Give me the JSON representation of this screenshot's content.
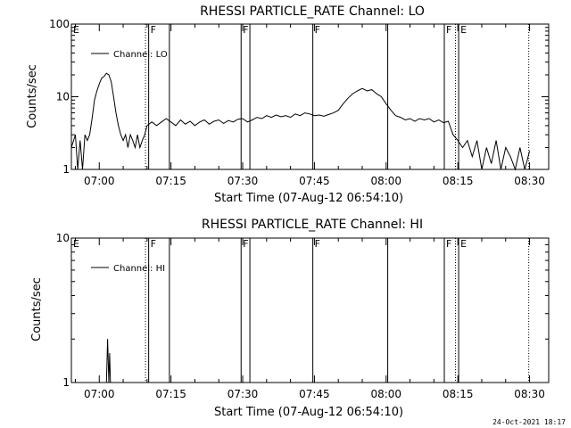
{
  "chart_data": [
    {
      "type": "line",
      "title": "RHESSI PARTICLE_RATE Channel: LO",
      "xlabel": "Start Time (07-Aug-12 06:54:10)",
      "ylabel": "Counts/sec",
      "yscale": "log",
      "ylim": [
        1,
        100
      ],
      "xlim": [
        "06:54:10",
        "08:34:00"
      ],
      "xticks": [
        "07:00",
        "07:15",
        "07:30",
        "07:45",
        "08:00",
        "08:15",
        "08:30"
      ],
      "yticks": [
        "1",
        "10",
        "100"
      ],
      "legend": "top-left",
      "series": [
        {
          "name": "Channel: LO",
          "x": [
            "06:54:10",
            "06:55:00",
            "06:55:30",
            "06:56:00",
            "06:56:30",
            "06:57:00",
            "06:57:30",
            "06:58:00",
            "06:58:30",
            "06:59:00",
            "06:59:30",
            "07:00:00",
            "07:00:30",
            "07:01:00",
            "07:01:30",
            "07:02:00",
            "07:02:30",
            "07:03:00",
            "07:03:30",
            "07:04:00",
            "07:04:30",
            "07:05:00",
            "07:05:30",
            "07:06:00",
            "07:06:30",
            "07:07:00",
            "07:07:30",
            "07:08:00",
            "07:08:30",
            "07:09:00",
            "07:09:30",
            "07:10:00",
            "07:11:00",
            "07:12:00",
            "07:13:00",
            "07:14:00",
            "07:15:00",
            "07:16:00",
            "07:17:00",
            "07:18:00",
            "07:19:00",
            "07:20:00",
            "07:21:00",
            "07:22:00",
            "07:23:00",
            "07:24:00",
            "07:25:00",
            "07:26:00",
            "07:27:00",
            "07:28:00",
            "07:29:00",
            "07:30:00",
            "07:31:00",
            "07:32:00",
            "07:33:00",
            "07:34:00",
            "07:35:00",
            "07:36:00",
            "07:37:00",
            "07:38:00",
            "07:39:00",
            "07:40:00",
            "07:41:00",
            "07:42:00",
            "07:43:00",
            "07:44:00",
            "07:45:00",
            "07:46:00",
            "07:47:00",
            "07:48:00",
            "07:49:00",
            "07:50:00",
            "07:51:00",
            "07:52:00",
            "07:53:00",
            "07:54:00",
            "07:55:00",
            "07:56:00",
            "07:57:00",
            "07:58:00",
            "07:59:00",
            "08:00:00",
            "08:01:00",
            "08:02:00",
            "08:03:00",
            "08:04:00",
            "08:05:00",
            "08:06:00",
            "08:07:00",
            "08:08:00",
            "08:09:00",
            "08:10:00",
            "08:11:00",
            "08:12:00",
            "08:13:00",
            "08:14:00",
            "08:15:00",
            "08:16:00",
            "08:17:00",
            "08:18:00",
            "08:19:00",
            "08:20:00",
            "08:21:00",
            "08:22:00",
            "08:23:00",
            "08:24:00",
            "08:25:00",
            "08:26:00",
            "08:27:00",
            "08:28:00",
            "08:29:00",
            "08:30:00"
          ],
          "values": [
            2,
            3,
            1,
            2.5,
            1,
            3,
            2.5,
            3,
            5,
            9,
            12,
            15,
            18,
            19,
            21,
            20,
            16,
            10,
            6,
            4,
            3,
            2.5,
            3,
            2,
            3,
            2.5,
            2,
            3,
            2,
            2.5,
            3,
            4,
            4.5,
            4,
            4.5,
            5,
            4.5,
            4,
            4.8,
            4.2,
            4.6,
            4,
            4.5,
            4.8,
            4.2,
            4.6,
            4.8,
            4.3,
            4.7,
            4.5,
            4.9,
            5,
            4.5,
            4.8,
            5.2,
            5,
            5.5,
            5.2,
            5.6,
            5.3,
            5.5,
            5.2,
            5.8,
            5.5,
            6,
            5.8,
            5.5,
            5.6,
            5.4,
            5.7,
            6,
            6.5,
            8,
            9.5,
            11,
            12,
            13,
            12,
            12.5,
            11,
            10,
            8,
            6.5,
            5.5,
            5.2,
            4.8,
            5,
            4.6,
            5,
            4.8,
            5,
            4.5,
            4.8,
            4.4,
            4.6,
            3,
            2.5,
            2,
            2.5,
            1.5,
            2.5,
            1,
            2,
            1.2,
            2.5,
            1,
            2,
            1.5,
            1,
            2,
            1,
            1.8
          ]
        }
      ],
      "markers": [
        {
          "label": "E",
          "time": "06:54:10",
          "style": "solid"
        },
        {
          "label": "",
          "time": "07:09:40",
          "style": "dotted"
        },
        {
          "label": "F",
          "time": "07:10:20",
          "style": "solid"
        },
        {
          "label": "",
          "time": "07:14:40",
          "style": "solid"
        },
        {
          "label": "F",
          "time": "07:29:40",
          "style": "solid"
        },
        {
          "label": "",
          "time": "07:31:30",
          "style": "solid"
        },
        {
          "label": "F",
          "time": "07:44:40",
          "style": "solid"
        },
        {
          "label": "",
          "time": "08:00:20",
          "style": "solid"
        },
        {
          "label": "F",
          "time": "08:12:10",
          "style": "solid"
        },
        {
          "label": "",
          "time": "08:14:30",
          "style": "dotted"
        },
        {
          "label": "E",
          "time": "08:15:10",
          "style": "solid"
        },
        {
          "label": "",
          "time": "08:29:50",
          "style": "dotted"
        }
      ]
    },
    {
      "type": "line",
      "title": "RHESSI PARTICLE_RATE Channel: HI",
      "xlabel": "Start Time (07-Aug-12 06:54:10)",
      "ylabel": "Counts/sec",
      "yscale": "log",
      "ylim": [
        1,
        10
      ],
      "xlim": [
        "06:54:10",
        "08:34:00"
      ],
      "xticks": [
        "07:00",
        "07:15",
        "07:30",
        "07:45",
        "08:00",
        "08:15",
        "08:30"
      ],
      "yticks": [
        "1",
        "10"
      ],
      "legend": "top-left",
      "series": [
        {
          "name": "Channel: HI",
          "x": [
            "07:01:30",
            "07:01:45",
            "07:02:00",
            "07:02:10",
            "07:02:20"
          ],
          "values": [
            1,
            2,
            1,
            1.6,
            1
          ]
        }
      ],
      "markers": [
        {
          "label": "E",
          "time": "06:54:10",
          "style": "solid"
        },
        {
          "label": "",
          "time": "07:09:40",
          "style": "dotted"
        },
        {
          "label": "F",
          "time": "07:10:20",
          "style": "solid"
        },
        {
          "label": "",
          "time": "07:14:40",
          "style": "solid"
        },
        {
          "label": "F",
          "time": "07:29:40",
          "style": "solid"
        },
        {
          "label": "",
          "time": "07:31:30",
          "style": "solid"
        },
        {
          "label": "F",
          "time": "07:44:40",
          "style": "solid"
        },
        {
          "label": "",
          "time": "08:00:20",
          "style": "solid"
        },
        {
          "label": "F",
          "time": "08:12:10",
          "style": "solid"
        },
        {
          "label": "",
          "time": "08:14:30",
          "style": "dotted"
        },
        {
          "label": "E",
          "time": "08:15:10",
          "style": "solid"
        },
        {
          "label": "",
          "time": "08:29:50",
          "style": "dotted"
        }
      ]
    }
  ],
  "footer": {
    "timestamp": "24-Oct-2021 18:17"
  }
}
